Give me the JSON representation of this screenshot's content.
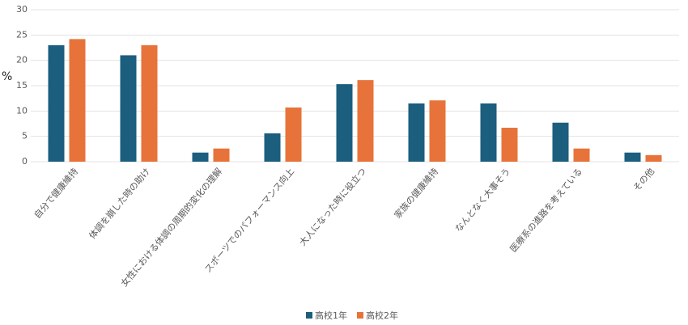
{
  "chart_data": {
    "type": "bar",
    "ylabel": "%",
    "categories": [
      "自分で健康維持",
      "体調を崩した時の助け",
      "女性における体調の周期的変化の理解",
      "スポーツでのパフォーマンス向上",
      "大人になった時に役立つ",
      "家族の健康維持",
      "なんとなく大事そう",
      "医療系の進路を考えている",
      "その他"
    ],
    "series": [
      {
        "name": "高校1年",
        "color": "#1b5e7e",
        "values": [
          23.0,
          21.0,
          1.8,
          5.6,
          15.3,
          11.5,
          11.5,
          7.7,
          1.8
        ]
      },
      {
        "name": "高校2年",
        "color": "#e8733a",
        "values": [
          24.2,
          23.0,
          2.6,
          10.7,
          16.1,
          12.1,
          6.7,
          2.6,
          1.3
        ]
      }
    ],
    "ylim": [
      0,
      30
    ],
    "yticks": [
      0,
      5,
      10,
      15,
      20,
      25,
      30
    ],
    "grid": true
  }
}
